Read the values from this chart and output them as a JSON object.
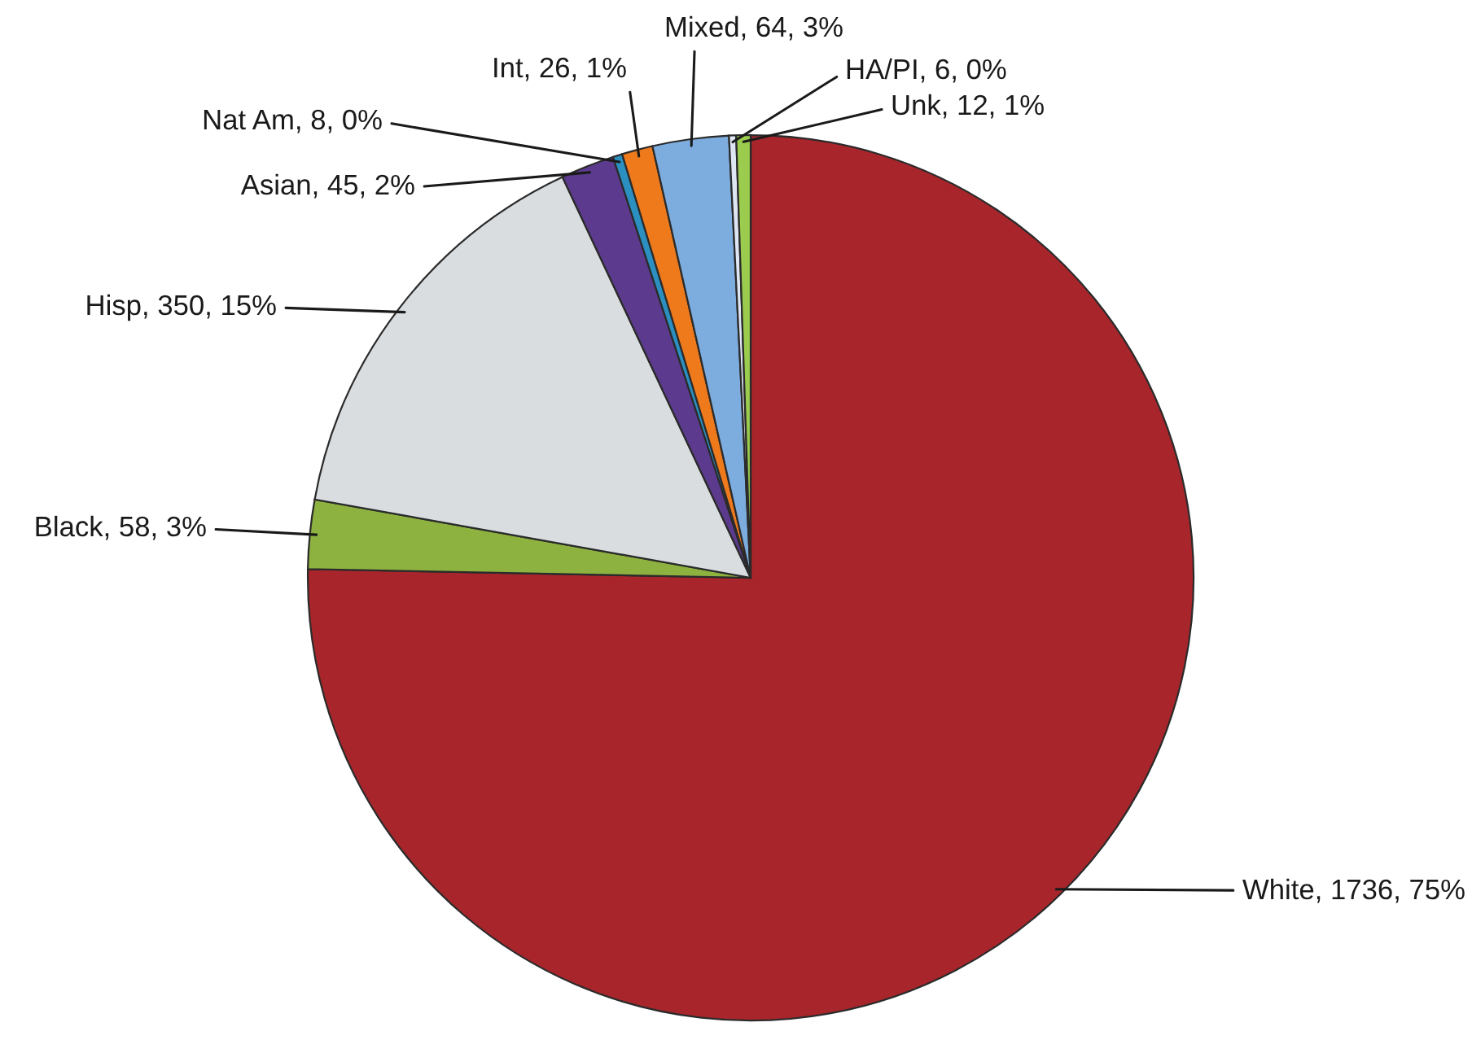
{
  "chart_data": {
    "type": "pie",
    "categories": [
      "White",
      "Black",
      "Hisp",
      "Asian",
      "Nat Am",
      "Int",
      "Mixed",
      "HA/PI",
      "Unk"
    ],
    "values": [
      1736,
      58,
      350,
      45,
      8,
      26,
      64,
      6,
      12
    ],
    "colors": [
      "#a8262b",
      "#8db23f",
      "#d9dde0",
      "#5c3b8e",
      "#2b8fc0",
      "#ee7a1c",
      "#7dacdf",
      "#dde6f2",
      "#9ccc4e"
    ],
    "value_labels": [
      "1736, 75%",
      "58, 3%",
      "350, 15%",
      "45, 2%",
      "8, 0%",
      "26, 1%",
      "64, 3%",
      "6, 0%",
      "12, 1%"
    ]
  }
}
